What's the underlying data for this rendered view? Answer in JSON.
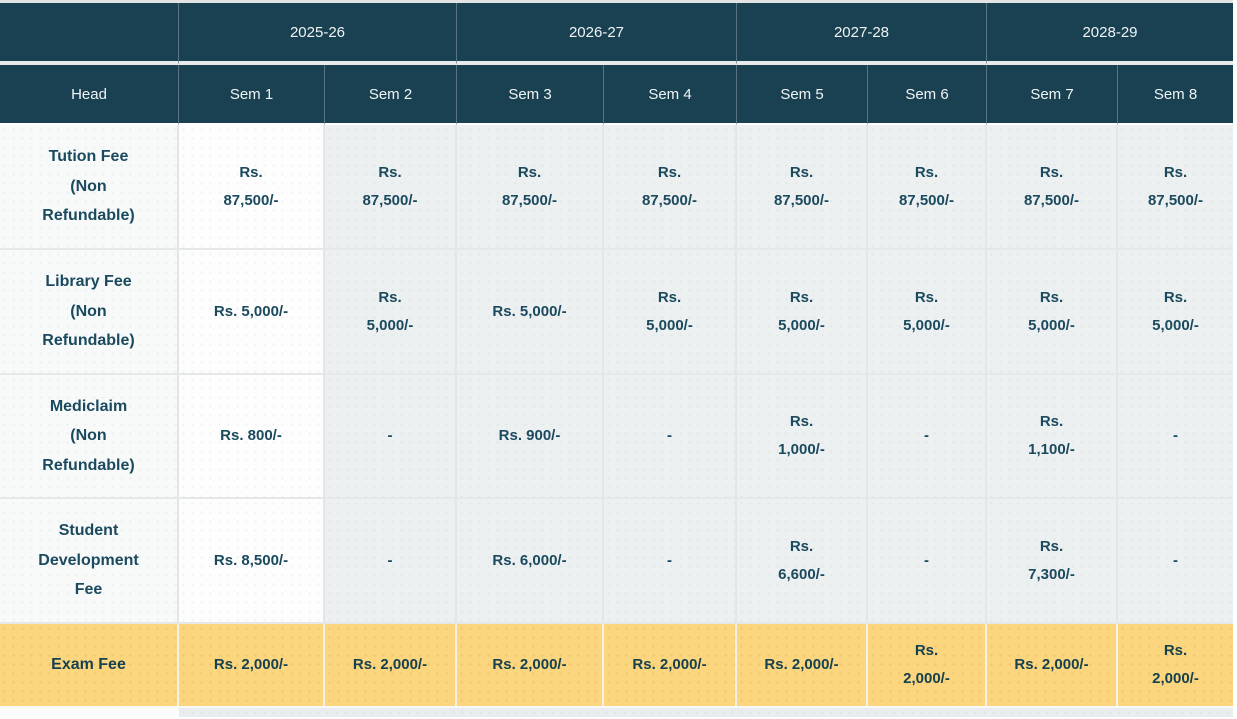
{
  "table": {
    "year_header": {
      "years": [
        "2025-26",
        "2026-27",
        "2027-28",
        "2028-29"
      ]
    },
    "column_header": {
      "head_label": "Head",
      "sem_labels": [
        "Sem 1",
        "Sem 2",
        "Sem 3",
        "Sem 4",
        "Sem 5",
        "Sem 6",
        "Sem 7",
        "Sem 8"
      ]
    },
    "rows": [
      {
        "head": "Tution Fee\n(Non\nRefundable)",
        "values": [
          "Rs.\n87,500/-",
          "Rs.\n87,500/-",
          "Rs.\n87,500/-",
          "Rs.\n87,500/-",
          "Rs.\n87,500/-",
          "Rs.\n87,500/-",
          "Rs.\n87,500/-",
          "Rs.\n87,500/-"
        ]
      },
      {
        "head": "Library Fee\n(Non\nRefundable)",
        "values": [
          "Rs. 5,000/-",
          "Rs.\n5,000/-",
          "Rs. 5,000/-",
          "Rs.\n5,000/-",
          "Rs.\n5,000/-",
          "Rs.\n5,000/-",
          "Rs.\n5,000/-",
          "Rs.\n5,000/-"
        ]
      },
      {
        "head": "Mediclaim\n(Non\nRefundable)",
        "values": [
          "Rs. 800/-",
          "-",
          "Rs. 900/-",
          "-",
          "Rs.\n1,000/-",
          "-",
          "Rs.\n1,100/-",
          "-"
        ]
      },
      {
        "head": "Student\nDevelopment\nFee",
        "values": [
          "Rs. 8,500/-",
          "-",
          "Rs. 6,000/-",
          "-",
          "Rs.\n6,600/-",
          "-",
          "Rs.\n7,300/-",
          "-"
        ]
      },
      {
        "head": "Exam Fee",
        "highlighted": true,
        "values": [
          "Rs. 2,000/-",
          "Rs. 2,000/-",
          "Rs. 2,000/-",
          "Rs. 2,000/-",
          "Rs. 2,000/-",
          "Rs.\n2,000/-",
          "Rs. 2,000/-",
          "Rs.\n2,000/-"
        ]
      }
    ],
    "colors": {
      "header_bg": "#1a4152",
      "header_text": "#f0f4f5",
      "body_text": "#1b4a5e",
      "highlight_row_bg": "#fbd67e",
      "highlight_text": "#16414f",
      "head_column_bg": "#f8fafa",
      "sem1_column_bg": "#fdfdfd",
      "other_column_bg": "#edf0f1"
    }
  }
}
